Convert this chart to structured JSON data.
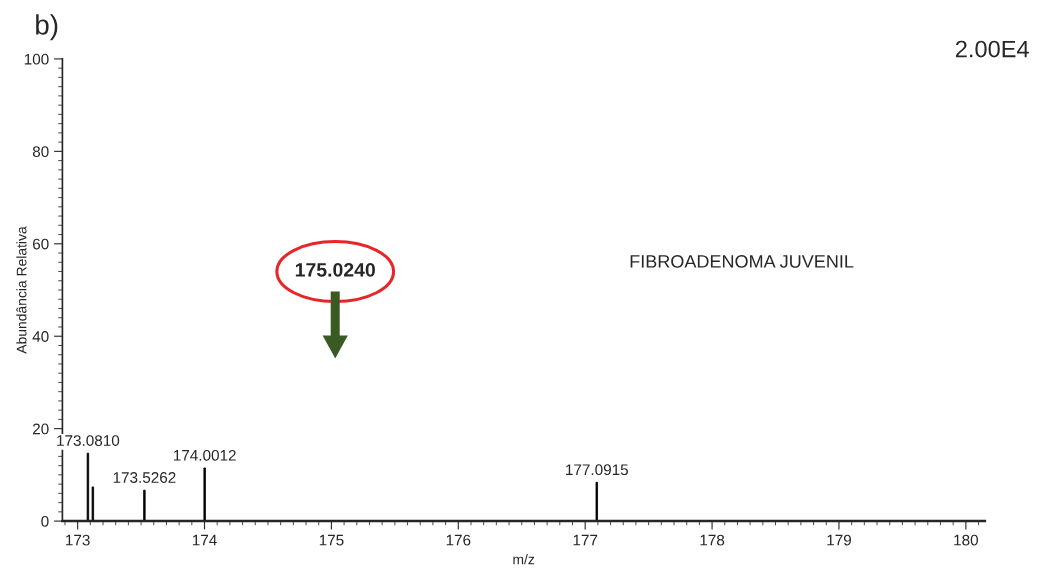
{
  "chart_data": {
    "type": "bar",
    "xlabel": "m/z",
    "ylabel": "Abundância Relativa",
    "x": [
      173.081,
      173.12,
      173.5262,
      174.0012,
      177.0915
    ],
    "values": [
      14.7,
      7.4,
      6.7,
      11.5,
      8.4
    ],
    "color": "#000000",
    "xlim": [
      172.88,
      180.15
    ],
    "ylim": [
      0,
      100
    ],
    "xticks": [
      173,
      174,
      175,
      176,
      177,
      178,
      179,
      180
    ],
    "yticks": [
      0,
      20,
      40,
      60,
      80,
      100
    ],
    "grid": false,
    "annotations": [
      "b)",
      "2.00E4",
      "FIBROADENOMA JUVENIL",
      "175.0240",
      {
        "text": "173.0810",
        "x": 173.081,
        "y": 14.7
      },
      {
        "text": "173.5262",
        "x": 173.5262,
        "y": 6.7
      },
      {
        "text": "174.0012",
        "x": 174.0012,
        "y": 11.5
      },
      {
        "text": "177.0915",
        "x": 177.0915,
        "y": 8.4
      }
    ]
  }
}
